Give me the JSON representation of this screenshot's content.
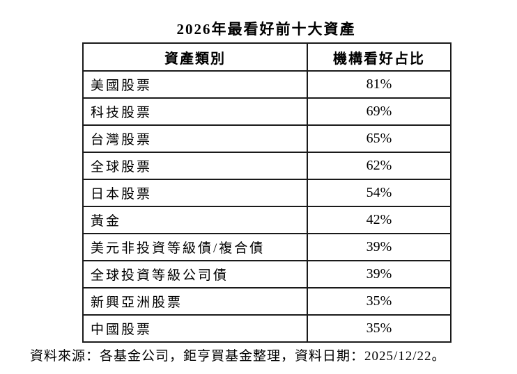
{
  "title": "2026年最看好前十大資產",
  "table": {
    "headers": [
      "資產類別",
      "機構看好占比"
    ],
    "rows": [
      {
        "category": "美國股票",
        "percent": "81%"
      },
      {
        "category": "科技股票",
        "percent": "69%"
      },
      {
        "category": "台灣股票",
        "percent": "65%"
      },
      {
        "category": "全球股票",
        "percent": "62%"
      },
      {
        "category": "日本股票",
        "percent": "54%"
      },
      {
        "category": "黃金",
        "percent": "42%"
      },
      {
        "category": "美元非投資等級債/複合債",
        "percent": "39%"
      },
      {
        "category": "全球投資等級公司債",
        "percent": "39%"
      },
      {
        "category": "新興亞洲股票",
        "percent": "35%"
      },
      {
        "category": "中國股票",
        "percent": "35%"
      }
    ]
  },
  "footer": "資料來源：各基金公司，鉅亨買基金整理，資料日期：2025/12/22。",
  "colors": {
    "background": "#ffffff",
    "text": "#000000",
    "border": "#1a1a1a"
  },
  "chart_data": {
    "type": "table",
    "title": "2026年最看好前十大資產",
    "columns": [
      "資產類別",
      "機構看好占比"
    ],
    "categories": [
      "美國股票",
      "科技股票",
      "台灣股票",
      "全球股票",
      "日本股票",
      "黃金",
      "美元非投資等級債/複合債",
      "全球投資等級公司債",
      "新興亞洲股票",
      "中國股票"
    ],
    "values_percent": [
      81,
      69,
      65,
      62,
      54,
      42,
      39,
      39,
      35,
      35
    ],
    "source_note": "資料來源：各基金公司，鉅亨買基金整理，資料日期：2025/12/22。"
  }
}
